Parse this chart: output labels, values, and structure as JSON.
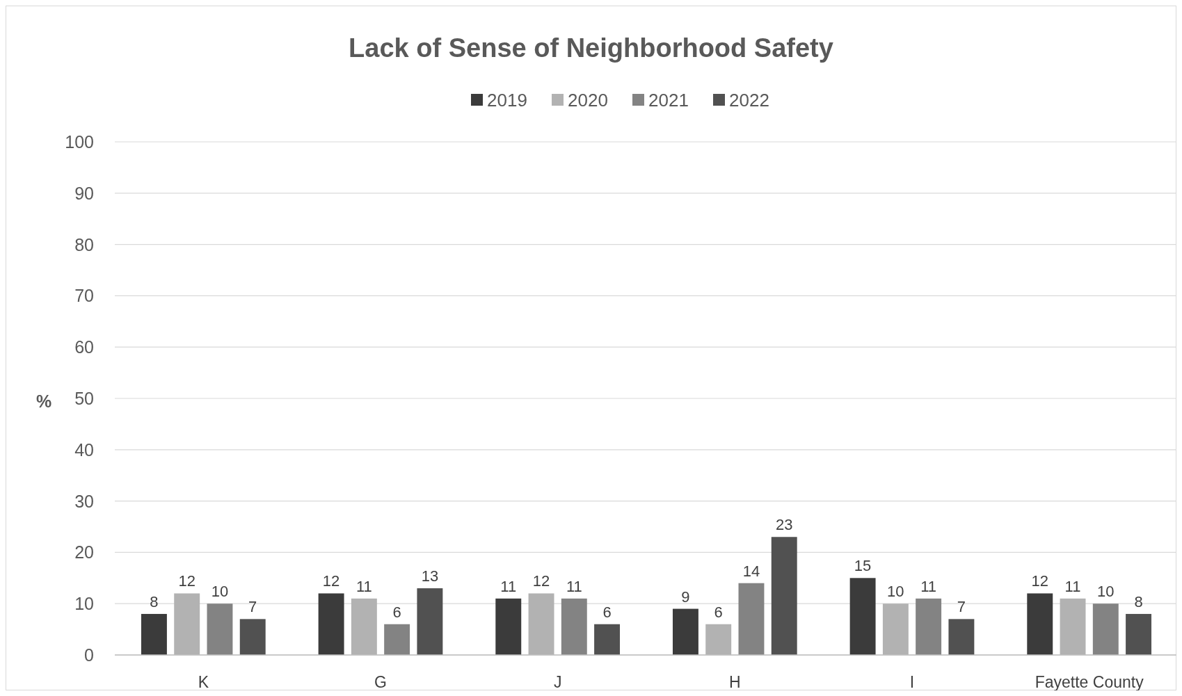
{
  "chart_data": {
    "type": "bar",
    "title": "Lack of Sense of Neighborhood Safety",
    "ylabel": "%",
    "categories": [
      "K",
      "G",
      "J",
      "H",
      "I",
      "Fayette County"
    ],
    "series": [
      {
        "name": "2019",
        "color": "#3b3b3b",
        "values": [
          8,
          12,
          11,
          9,
          15,
          12
        ]
      },
      {
        "name": "2020",
        "color": "#b2b2b2",
        "values": [
          12,
          11,
          12,
          6,
          10,
          11
        ]
      },
      {
        "name": "2021",
        "color": "#838383",
        "values": [
          10,
          6,
          11,
          14,
          11,
          10
        ]
      },
      {
        "name": "2022",
        "color": "#515151",
        "values": [
          7,
          13,
          6,
          23,
          7,
          8
        ]
      }
    ],
    "ylim": [
      0,
      100
    ],
    "yticks": [
      0,
      10,
      20,
      30,
      40,
      50,
      60,
      70,
      80,
      90,
      100
    ],
    "grid": "y",
    "legend": "top",
    "data_labels": true
  }
}
